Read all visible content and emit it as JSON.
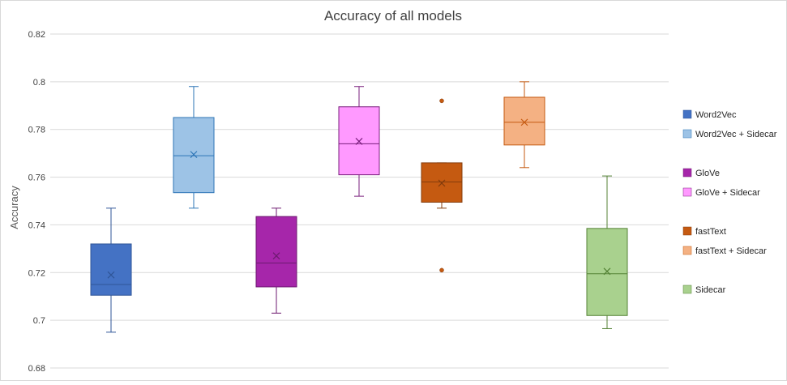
{
  "chart_data": {
    "type": "box",
    "title": "Accuracy of all models",
    "xlabel": "",
    "ylabel": "Accuracy",
    "ylim": [
      0.68,
      0.82
    ],
    "yticks": [
      "0.68",
      "0.7",
      "0.72",
      "0.74",
      "0.76",
      "0.78",
      "0.8",
      "0.82"
    ],
    "grid": true,
    "legend_position": "right",
    "series": [
      {
        "name": "Word2Vec",
        "color": "#4472C4",
        "stroke": "#2F5597",
        "min": 0.695,
        "q1": 0.7105,
        "median": 0.715,
        "q3": 0.732,
        "max": 0.747,
        "mean": 0.719,
        "outliers": []
      },
      {
        "name": "Word2Vec + Sidecar",
        "color": "#9DC3E6",
        "stroke": "#2E75B6",
        "min": 0.747,
        "q1": 0.7535,
        "median": 0.769,
        "q3": 0.785,
        "max": 0.798,
        "mean": 0.7695,
        "outliers": []
      },
      {
        "name": "GloVe",
        "color": "#A626AA",
        "stroke": "#6D1A70",
        "min": 0.703,
        "q1": 0.714,
        "median": 0.724,
        "q3": 0.7435,
        "max": 0.747,
        "mean": 0.727,
        "outliers": []
      },
      {
        "name": "GloVe + Sidecar",
        "color": "#FF99FF",
        "stroke": "#7A1F7D",
        "min": 0.752,
        "q1": 0.761,
        "median": 0.774,
        "q3": 0.7895,
        "max": 0.798,
        "mean": 0.775,
        "outliers": []
      },
      {
        "name": "fastText",
        "color": "#C55A11",
        "stroke": "#843C0C",
        "min": 0.747,
        "q1": 0.7495,
        "median": 0.758,
        "q3": 0.766,
        "max": 0.766,
        "mean": 0.7575,
        "outliers": [
          0.792,
          0.721
        ]
      },
      {
        "name": "fastText + Sidecar",
        "color": "#F4B183",
        "stroke": "#C55A11",
        "min": 0.764,
        "q1": 0.7735,
        "median": 0.783,
        "q3": 0.7935,
        "max": 0.8,
        "mean": 0.783,
        "outliers": []
      },
      {
        "name": "Sidecar",
        "color": "#A9D18E",
        "stroke": "#548235",
        "min": 0.6965,
        "q1": 0.702,
        "median": 0.7195,
        "q3": 0.7385,
        "max": 0.7605,
        "mean": 0.7205,
        "outliers": []
      }
    ]
  }
}
